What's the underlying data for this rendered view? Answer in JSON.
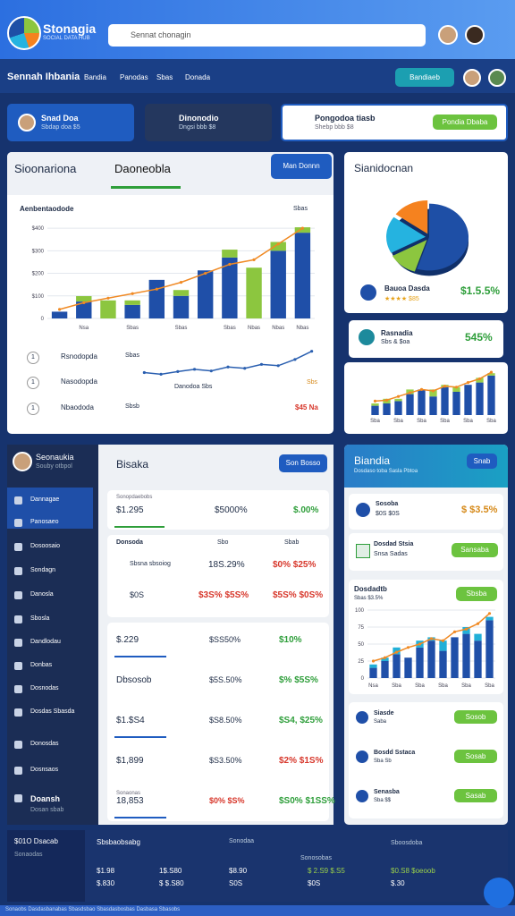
{
  "header": {
    "logo_title": "Stonagia",
    "logo_subtitle": "SOCIAL DATA HUB",
    "search": "Sennat chonagin"
  },
  "nav": {
    "brand": "Sennah Ihbania",
    "tabs": [
      "Bandia",
      "Panodas",
      "Sbas",
      "Donada"
    ],
    "button": "Bandiaeb"
  },
  "cards": [
    {
      "title": "Snad Doa",
      "sub": "Sbdap doa $5"
    },
    {
      "title": "Dinonodio",
      "sub": "Dngsi bbb $8"
    },
    {
      "title": "Pongodoa tiasb",
      "sub": "Shebp bbb $8",
      "button": "Pondia Dbaba"
    }
  ],
  "main_panel": {
    "title": "Sioonariona",
    "tab": "Daoneobla",
    "button": "Man Donnn",
    "chart_title": "Aenbentaodode",
    "chart_note": "Sbas"
  },
  "list": [
    {
      "n": "1",
      "label": "Rsnodopda",
      "note": "Sbas"
    },
    {
      "n": "1",
      "label": "Nasodopda",
      "note": "Danodoa Sbs",
      "end": "Sbs"
    },
    {
      "n": "1",
      "label": "Nbaododa",
      "note": "Sbsb",
      "end": "$45 Na"
    }
  ],
  "right_top": {
    "title": "Sianidocnan",
    "item_title": "Bauoa Dasda",
    "item_sub": "★★★★ $85",
    "value": "$1.5.5%"
  },
  "right_item": {
    "title": "Rasnadia",
    "sub": "Sbs & $oa",
    "value": "545%"
  },
  "sidebar": {
    "user": "Seonaukia",
    "role": "Souby otbpol",
    "items": [
      "Dannagae",
      "Panosaeo",
      "Dosoosaio",
      "Sondagn",
      "Danosla",
      "Sbosla",
      "Dandlodau",
      "Donbas",
      "Dosnodas",
      "Dosdas Sbasda",
      "Donosdas",
      "Dosnsaos",
      "Doansh"
    ],
    "footer": "Dosan sbab"
  },
  "center": {
    "title": "Bisaka",
    "button": "Son Bosso",
    "section1": {
      "header": "Sonopdaebobs",
      "row": [
        "$1.295",
        "$5000%",
        "$.00%"
      ]
    },
    "section2": {
      "header": [
        "Donsoda",
        "Sbo",
        "Sbab"
      ],
      "rows": [
        [
          "Sbsna sbsoiog",
          "18S.29%",
          "$0% $25%"
        ],
        [
          "$0S",
          "$3S% $5S%",
          "$5S% $0S%"
        ]
      ]
    },
    "section3": {
      "rows": [
        [
          "$.229",
          "$SS50%",
          "$10%"
        ],
        [
          "Dbsosob",
          "$5S.50%",
          "$% $5S%"
        ],
        [
          "$1.$S4",
          "$S8.50%",
          "$S4, $25%"
        ],
        [
          "$1,899",
          "$S3.50%",
          "$2% $1S%"
        ],
        [
          "18,853",
          "$0% $S%",
          "$S0% $1SS%"
        ]
      ],
      "note": "Sonaonas"
    }
  },
  "right_lower": {
    "title": "Biandia",
    "button": "Snab",
    "sub": "Dosdaso toba Sasla Pbtoa",
    "item1": {
      "title": "Sosoba",
      "sub": "$0S $0S",
      "value": "$ $3.5%"
    },
    "item2": {
      "title": "Dosdad Stsia",
      "sub": "Snsa Sadas",
      "button": "Sansaba"
    },
    "chart_panel": {
      "title": "Dosdadtb",
      "sub": "Sbas $3.5%",
      "button": "Sbsba"
    },
    "items": [
      {
        "title": "Siasde",
        "sub": "Saba",
        "button": "Sosob"
      },
      {
        "title": "Bosdd Sstaca",
        "sub": "Sba Sb",
        "button": "Sosab"
      },
      {
        "title": "Senasba",
        "sub": "Sba $$",
        "button": "Sasab"
      }
    ]
  },
  "footer": {
    "brand": "$01O Dsacab",
    "sub": "Sonaodas",
    "table_title": "Sbsbaobsabg",
    "headers": [
      "Sonodaa",
      "Sonosobas",
      "Sboosdoba"
    ],
    "rows": [
      [
        "$1.98",
        "1$.S80",
        "$8.90",
        "$ 2.S9 $.S5",
        "$0.S8 $oeoob"
      ],
      [
        "$.830",
        "$ $.S80",
        "S0S",
        "$0S",
        "$.30"
      ]
    ],
    "strip": "Sonaobs Dasdasbanabas Sbasdsbao Sbasdasbosbas Dasbasa Sbasobs"
  },
  "chart_data": [
    {
      "type": "bar",
      "categories": [
        null,
        "Nsa",
        null,
        "Sbas",
        null,
        "Sbas",
        null,
        "Sbas",
        "Nbas",
        "Nbas",
        "Nbas"
      ],
      "series": [
        {
          "color": "#1f4fa8",
          "values": [
            30,
            75,
            0,
            60,
            171,
            100,
            213,
            270,
            0,
            300,
            380
          ]
        },
        {
          "color": "#8cc63f",
          "values": [
            0,
            24,
            80,
            20,
            0,
            26,
            0,
            35,
            225,
            39,
            24
          ]
        },
        {
          "type": "line",
          "color": "#f08a24",
          "values": [
            40,
            70,
            90,
            110,
            130,
            160,
            200,
            240,
            260,
            330,
            400
          ]
        }
      ],
      "ylim": [
        0,
        440
      ],
      "yticks": [
        0,
        {
          "value": 100,
          "label": "$100"
        },
        {
          "value": 200,
          "label": "$200"
        },
        {
          "value": 300,
          "label": "$300"
        },
        {
          "value": 400,
          "label": "$400"
        }
      ],
      "grid": true
    },
    {
      "type": "line",
      "series": [
        {
          "color": "#2a5fb0",
          "values": [
            45,
            40,
            48,
            55,
            50,
            62,
            58,
            70,
            66,
            85,
            110
          ]
        }
      ],
      "ylim": [
        0,
        120
      ]
    },
    {
      "type": "pie",
      "values": [
        55,
        12,
        18,
        15
      ],
      "colors": [
        "#1e4fa6",
        "#8cc63f",
        "#25b3e0",
        "#f5821f"
      ]
    },
    {
      "type": "bar",
      "categories": [
        "Sba",
        null,
        "Sba",
        null,
        "Sba",
        null,
        "Sba",
        null,
        "Sba",
        null,
        "Sba"
      ],
      "series": [
        {
          "color": "#1f4fa8",
          "values": [
            20,
            25,
            30,
            45,
            55,
            40,
            60,
            50,
            65,
            70,
            85
          ]
        },
        {
          "color": "#9ad04a",
          "values": [
            5,
            10,
            5,
            10,
            0,
            15,
            5,
            10,
            0,
            10,
            5
          ]
        },
        {
          "type": "line",
          "color": "#f08a24",
          "values": [
            30,
            32,
            40,
            48,
            55,
            52,
            62,
            60,
            70,
            78,
            92
          ]
        }
      ],
      "ylim": [
        0,
        100
      ]
    },
    {
      "type": "bar",
      "categories": [
        "Nsa",
        null,
        "Sba",
        null,
        "Sba",
        null,
        "Sba",
        null,
        "Sba",
        null,
        "Sba"
      ],
      "series": [
        {
          "color": "#1f4fa8",
          "values": [
            15,
            25,
            35,
            30,
            45,
            55,
            40,
            60,
            65,
            55,
            85
          ]
        },
        {
          "color": "#21b0d8",
          "values": [
            5,
            5,
            10,
            0,
            10,
            5,
            15,
            0,
            10,
            10,
            5
          ]
        },
        {
          "type": "line",
          "color": "#f08a24",
          "values": [
            25,
            30,
            38,
            45,
            50,
            58,
            55,
            68,
            72,
            80,
            95
          ]
        }
      ],
      "ylim": [
        0,
        100
      ],
      "yticks": [
        0,
        25,
        50,
        75,
        100
      ],
      "grid": true
    }
  ]
}
